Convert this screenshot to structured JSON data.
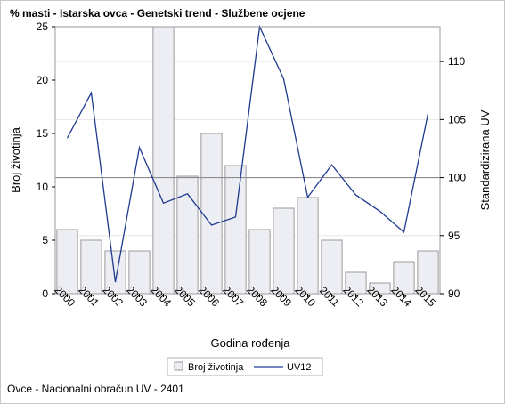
{
  "title": "% masti - Istarska ovca - Genetski trend - Službene ocjene",
  "footnote": "Ovce - Nacionalni obračun UV - 2401",
  "chart_data": {
    "type": "bar",
    "categories": [
      "2000",
      "2001",
      "2002",
      "2003",
      "2004",
      "2005",
      "2006",
      "2007",
      "2008",
      "2009",
      "2010",
      "2011",
      "2012",
      "2013",
      "2014",
      "2015"
    ],
    "xlabel": "Godina rođenja",
    "series": [
      {
        "name": "Broj životinja",
        "type": "bar",
        "axis": "left",
        "values": [
          6,
          5,
          4,
          4,
          25,
          11,
          15,
          12,
          6,
          8,
          9,
          5,
          2,
          1,
          3,
          4
        ]
      },
      {
        "name": "UV12",
        "type": "line",
        "axis": "right",
        "values": [
          103.4,
          107.3,
          91.0,
          102.6,
          97.8,
          98.6,
          95.9,
          96.6,
          113.0,
          108.5,
          98.3,
          101.1,
          98.5,
          97.1,
          95.3,
          105.5
        ]
      }
    ],
    "y_left": {
      "label": "Broj životinja",
      "ylim": [
        0,
        25
      ],
      "ticks": [
        0,
        5,
        10,
        15,
        20,
        25
      ]
    },
    "y_right": {
      "label": "Standardizirana UV",
      "ylim": [
        90,
        113
      ],
      "ticks": [
        90,
        95,
        100,
        105,
        110
      ]
    },
    "reference_line_right": 100,
    "grid": true,
    "legend_position": "bottom",
    "colors": {
      "bar_fill": "#eceef3",
      "bar_stroke": "#9a9a9a",
      "line": "#1f3a8f",
      "ref": "#8c8c8c",
      "grid": "#e6e6e6"
    }
  }
}
